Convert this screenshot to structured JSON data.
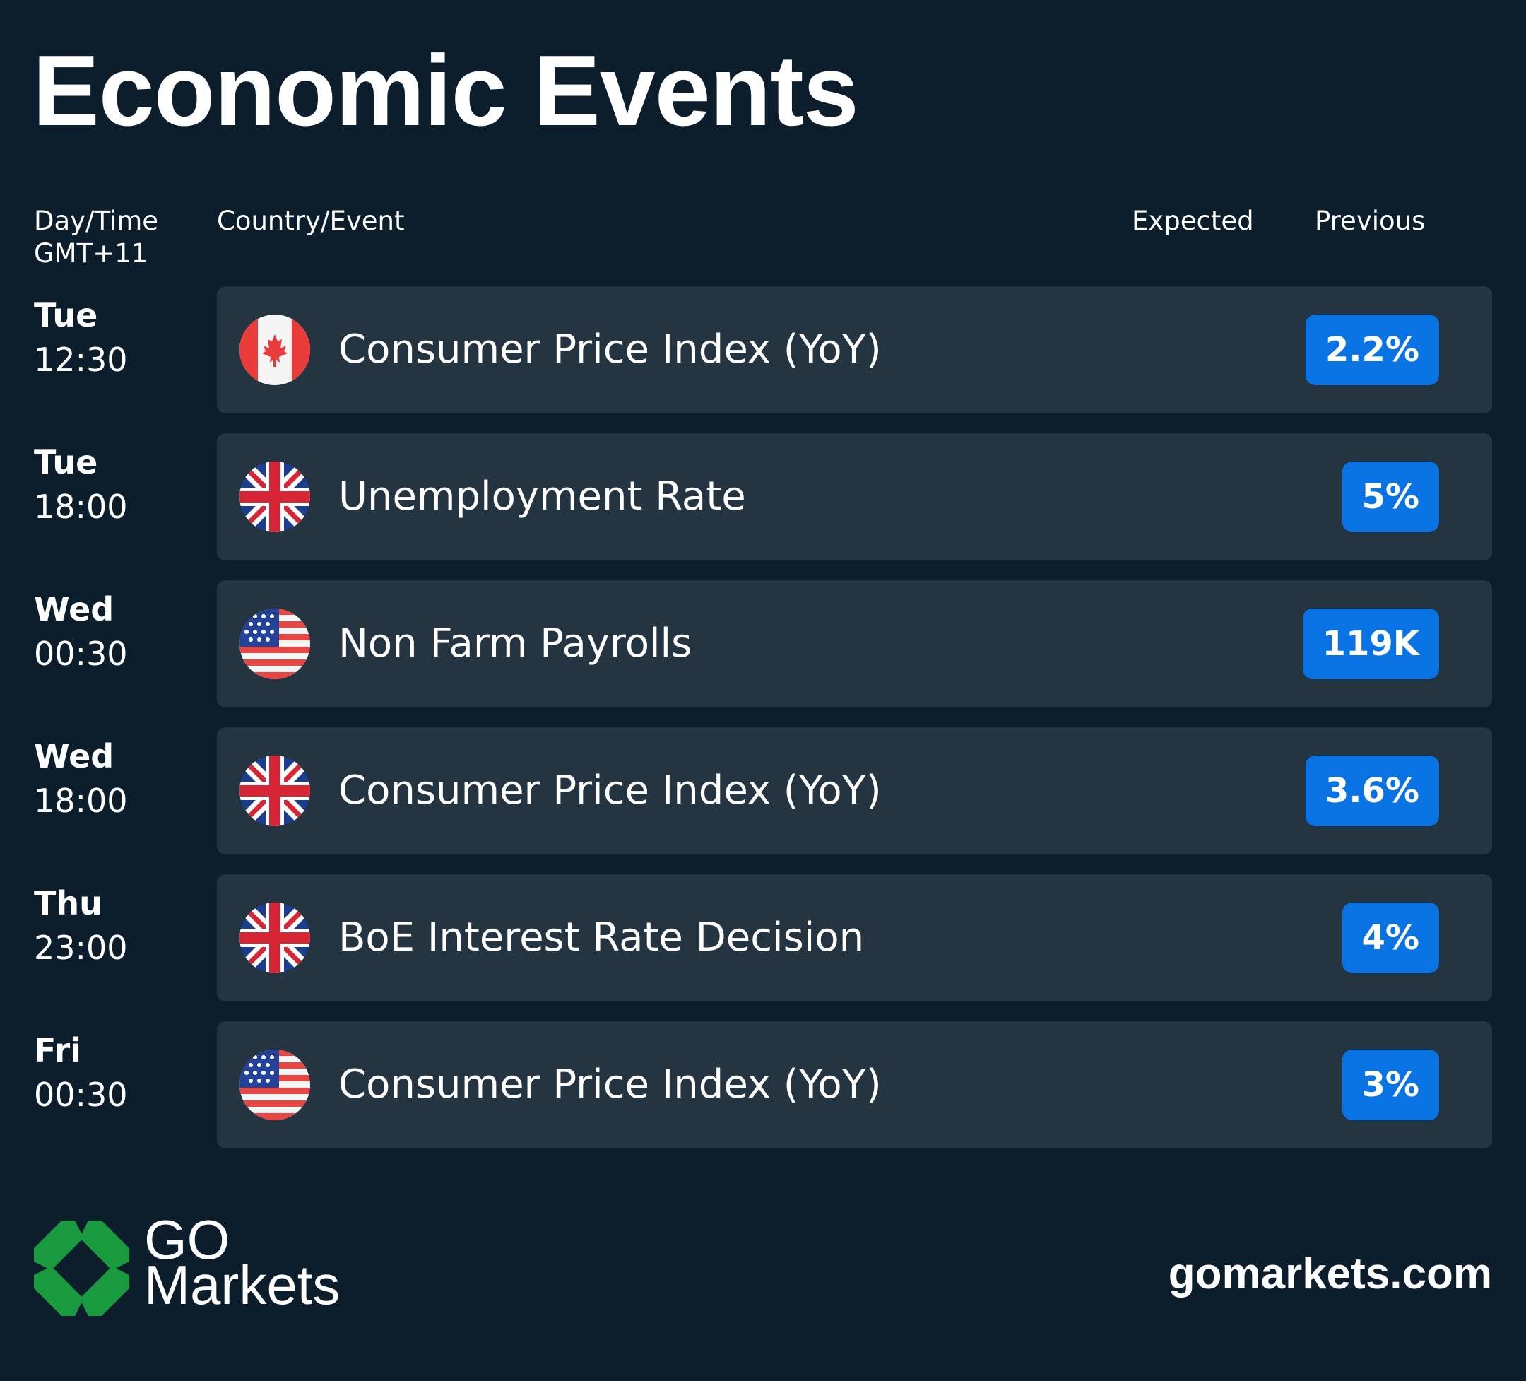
{
  "title": "Economic Events",
  "columns": {
    "day_time": "Day/Time",
    "timezone": "GMT+11",
    "country_event": "Country/Event",
    "expected": "Expected",
    "previous": "Previous"
  },
  "events": [
    {
      "day": "Tue",
      "time": "12:30",
      "country": "canada-flag-icon",
      "event": "Consumer Price Index (YoY)",
      "expected": "",
      "previous": "2.2%"
    },
    {
      "day": "Tue",
      "time": "18:00",
      "country": "uk-flag-icon",
      "event": "Unemployment Rate",
      "expected": "",
      "previous": "5%"
    },
    {
      "day": "Wed",
      "time": "00:30",
      "country": "us-flag-icon",
      "event": "Non Farm Payrolls",
      "expected": "",
      "previous": "119K"
    },
    {
      "day": "Wed",
      "time": "18:00",
      "country": "uk-flag-icon",
      "event": "Consumer Price Index (YoY)",
      "expected": "",
      "previous": "3.6%"
    },
    {
      "day": "Thu",
      "time": "23:00",
      "country": "uk-flag-icon",
      "event": "BoE Interest Rate Decision",
      "expected": "",
      "previous": "4%"
    },
    {
      "day": "Fri",
      "time": "00:30",
      "country": "us-flag-icon",
      "event": "Consumer Price Index (YoY)",
      "expected": "",
      "previous": "3%"
    }
  ],
  "brand": {
    "line1": "GO",
    "line2": "Markets",
    "logo_icon": "go-markets-logo-icon",
    "website": "gomarkets.com"
  },
  "colors": {
    "background": "#0c1d2b",
    "card": "#243441",
    "badge": "#0a73e3",
    "logo_green": "#1a9a3f"
  }
}
